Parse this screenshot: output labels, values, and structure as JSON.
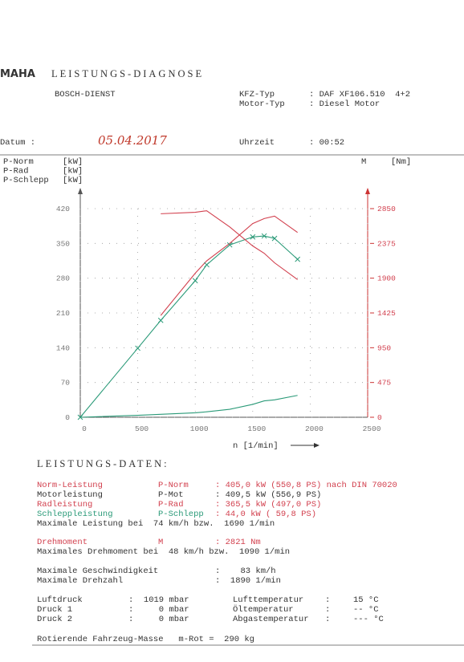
{
  "header": {
    "logo": "MAHA",
    "title": "LEISTUNGS-DIAGNOSE",
    "service": "BOSCH-DIENST",
    "vehicle_label": "KFZ-Typ",
    "vehicle": ": DAF XF106.510  4+2",
    "engine_label": "Motor-Typ",
    "engine": ": Diesel Motor",
    "date_label": "Datum :",
    "date": "05.04.2017",
    "time_label": "Uhrzeit",
    "time": ": 00:52"
  },
  "chart_data": {
    "type": "line",
    "x_label": "n [1/min]",
    "y_unit": "[kW]",
    "y2_name": "M",
    "y2_unit": "[Nm]",
    "x": [
      0,
      500,
      700,
      1000,
      1100,
      1300,
      1500,
      1600,
      1690,
      1890
    ],
    "series": [
      {
        "name": "P-Norm",
        "color": "#d2404e",
        "values": [
          null,
          null,
          205,
          290,
          315,
          350,
          390,
          400,
          405,
          372
        ]
      },
      {
        "name": "P-Rad",
        "color": "#2a9a78",
        "marker": "x",
        "values": [
          0,
          139,
          195,
          275,
          307,
          347,
          363,
          365,
          360,
          318
        ]
      },
      {
        "name": "P-Schlepp",
        "color": "#2a9a78",
        "values": [
          0,
          4,
          6,
          9,
          11,
          16,
          26,
          33,
          35,
          44
        ]
      },
      {
        "name": "M",
        "color": "#d2404e",
        "axis": "y2",
        "values": [
          null,
          null,
          2780,
          2800,
          2821,
          2600,
          2340,
          2240,
          2110,
          1880
        ]
      }
    ],
    "xlim": [
      0,
      2500
    ],
    "xticks": [
      0,
      500,
      1000,
      1500,
      2000,
      2500
    ],
    "ylim": [
      0,
      420
    ],
    "yticks": [
      0,
      70,
      140,
      210,
      280,
      350,
      420
    ],
    "y2lim": [
      0,
      2850
    ],
    "y2ticks": [
      0,
      475,
      950,
      1425,
      1900,
      2375,
      2850
    ],
    "grid": true
  },
  "data_section": {
    "title": "LEISTUNGS-DATEN:",
    "rows": [
      [
        "Norm-Leistung",
        "P-Norm",
        ": 405,0 kW (550,8 PS) nach DIN 70020"
      ],
      [
        "Motorleistung",
        "P-Mot",
        ": 409,5 kW (556,9 PS)"
      ],
      [
        "Radleistung",
        "P-Rad",
        ": 365,5 kW (497,0 PS)"
      ],
      [
        "Schleppleistung",
        "P-Schlepp",
        ": 44,0 kW ( 59,8 PS)"
      ]
    ],
    "max_power": "Maximale Leistung bei  74 km/h bzw.  1690 1/min",
    "torque": [
      "Drehmoment",
      "M",
      ": 2821 Nm"
    ],
    "max_torque": "Maximales Drehmoment bei  48 km/h bzw.  1090 1/min",
    "speed": [
      "Maximale Geschwindigkeit",
      ":    83 km/h"
    ],
    "rpm": [
      "Maximale Drehzahl",
      ":  1890 1/min"
    ],
    "ambient": [
      [
        "Luftdruck",
        ":  1019 mbar",
        "Lufttemperatur",
        ":",
        "15 °C"
      ],
      [
        "Druck 1",
        ":     0 mbar",
        "Öltemperatur",
        ":",
        "-- °C"
      ],
      [
        "Druck 2",
        ":     0 mbar",
        "Abgastemperatur",
        ":",
        "--- °C"
      ]
    ],
    "mass": "Rotierende Fahrzeug-Masse   m-Rot =  290 kg"
  }
}
